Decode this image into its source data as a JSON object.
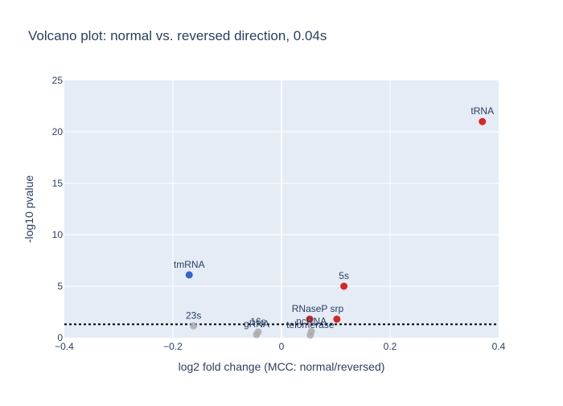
{
  "chart_data": {
    "type": "scatter",
    "title": "Volcano plot: normal vs. reversed direction, 0.04s",
    "xlabel": "log2 fold change (MCC: normal/reversed)",
    "ylabel": "-log10 pvalue",
    "xlim": [
      -0.4,
      0.4
    ],
    "ylim": [
      0,
      25
    ],
    "x_ticks": [
      -0.4,
      -0.2,
      0,
      0.2,
      0.4
    ],
    "x_tick_labels": [
      "−0.4",
      "−0.2",
      "0",
      "0.2",
      "0.4"
    ],
    "y_ticks": [
      0,
      5,
      10,
      15,
      20,
      25
    ],
    "y_tick_labels": [
      "0",
      "5",
      "10",
      "15",
      "20",
      "25"
    ],
    "threshold_y": 1.3,
    "grid": true,
    "legend": "none",
    "colors": {
      "up": "#d62728",
      "down": "#3366cc",
      "ns": "#aaaaaa",
      "plot_bg": "#e5ecf6",
      "grid": "#ffffff",
      "text": "#2a3f5f"
    },
    "points": [
      {
        "label": "tRNA",
        "x": 0.37,
        "y": 21.0,
        "status": "up"
      },
      {
        "label": "tmRNA",
        "x": -0.17,
        "y": 6.1,
        "status": "down"
      },
      {
        "label": "5s",
        "x": 0.115,
        "y": 5.0,
        "status": "up"
      },
      {
        "label": "RNaseP",
        "x": 0.052,
        "y": 1.8,
        "status": "up"
      },
      {
        "label": "srp",
        "x": 0.102,
        "y": 1.8,
        "status": "up"
      },
      {
        "label": "23s",
        "x": -0.162,
        "y": 1.15,
        "status": "ns"
      },
      {
        "label": "16s",
        "x": -0.043,
        "y": 0.55,
        "status": "ns"
      },
      {
        "label": "gRNA",
        "x": -0.046,
        "y": 0.3,
        "status": "ns"
      },
      {
        "label": "ncRNA",
        "x": 0.055,
        "y": 0.6,
        "status": "ns"
      },
      {
        "label": "telomerase",
        "x": 0.053,
        "y": 0.25,
        "status": "ns"
      }
    ]
  }
}
